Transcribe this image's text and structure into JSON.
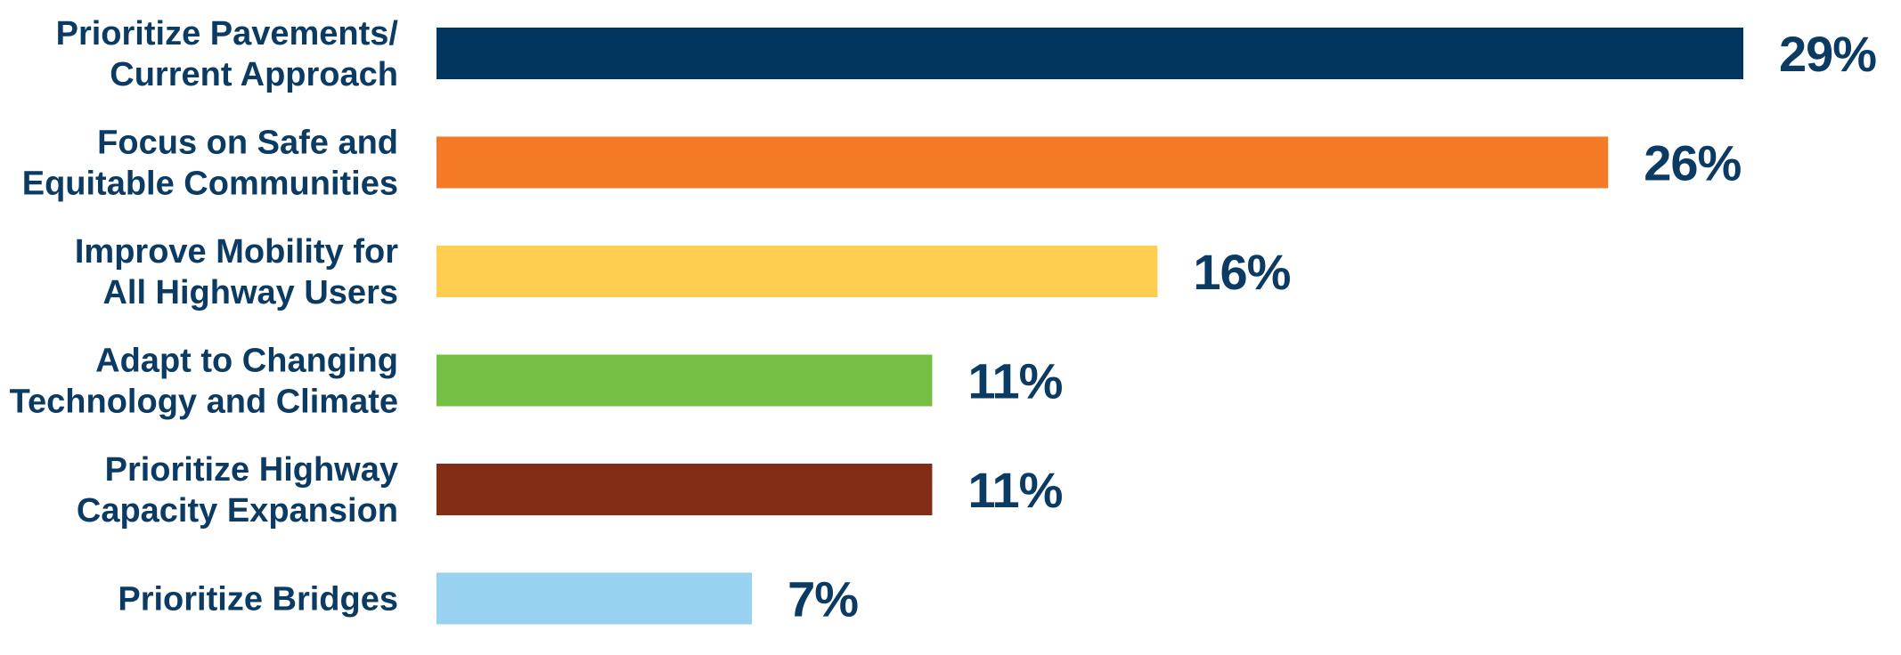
{
  "chart_data": {
    "type": "bar",
    "orientation": "horizontal",
    "categories": [
      [
        "Prioritize Pavements/",
        "Current Approach"
      ],
      [
        "Focus on Safe and",
        "Equitable Communities"
      ],
      [
        "Improve Mobility for",
        "All Highway Users"
      ],
      [
        "Adapt to Changing",
        "Technology and Climate"
      ],
      [
        "Prioritize Highway",
        "Capacity Expansion"
      ],
      [
        "Prioritize Bridges"
      ]
    ],
    "values": [
      29,
      26,
      16,
      11,
      11,
      7
    ],
    "value_labels": [
      "29%",
      "26%",
      "16%",
      "11%",
      "11%",
      "7%"
    ],
    "colors": [
      "#03365f",
      "#f47a25",
      "#ffcd50",
      "#76bf45",
      "#832d16",
      "#99d1f0"
    ],
    "xlim": [
      0,
      29
    ],
    "title": "",
    "xlabel": "",
    "ylabel": "",
    "grid": false,
    "legend": "none"
  }
}
